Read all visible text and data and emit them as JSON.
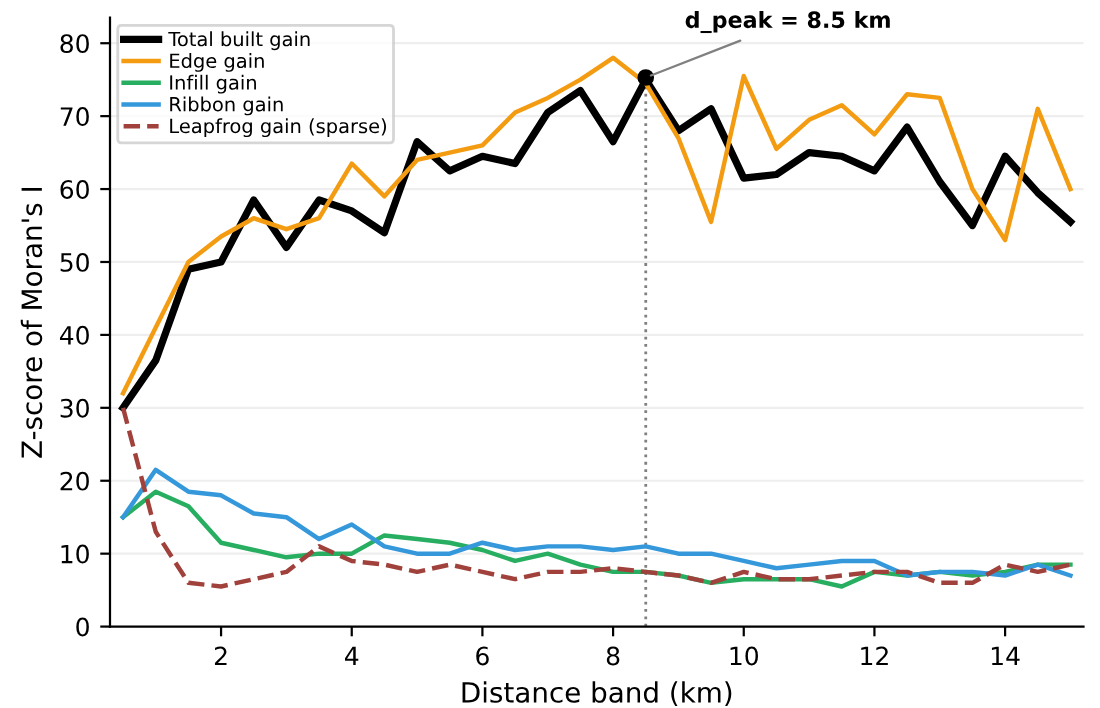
{
  "chart_data": {
    "type": "line",
    "xlabel": "Distance band (km)",
    "ylabel": "Z-score of Moran's I",
    "x": [
      0.5,
      1,
      1.5,
      2,
      2.5,
      3,
      3.5,
      4,
      4.5,
      5,
      5.5,
      6,
      6.5,
      7,
      7.5,
      8,
      8.5,
      9,
      9.5,
      10,
      10.5,
      11,
      11.5,
      12,
      12.5,
      13,
      13.5,
      14,
      14.5,
      15
    ],
    "series": [
      {
        "name": "Total built gain",
        "color": "#000000",
        "values": [
          30,
          36.5,
          49,
          50,
          58.5,
          52,
          58.5,
          57,
          54,
          66.5,
          62.5,
          64.5,
          63.5,
          70.5,
          73.5,
          66.5,
          75,
          68,
          71,
          61.5,
          62,
          65,
          64.5,
          62.5,
          68.5,
          61,
          55,
          64.5,
          59.5,
          55.5
        ]
      },
      {
        "name": "Edge gain",
        "color": "#f39c12",
        "values": [
          32,
          41,
          50,
          53.5,
          56,
          54.5,
          56,
          63.5,
          59,
          64,
          65,
          66,
          70.5,
          72.5,
          75,
          78,
          74.5,
          67,
          55.5,
          75.5,
          65.5,
          69.5,
          71.5,
          67.5,
          73,
          72.5,
          60,
          53,
          71,
          60
        ]
      },
      {
        "name": "Infill gain",
        "color": "#27ae60",
        "values": [
          15,
          18.5,
          16.5,
          11.5,
          10.5,
          9.5,
          10,
          10,
          12.5,
          12,
          11.5,
          10.5,
          9,
          10,
          8.5,
          7.5,
          7.5,
          7,
          6,
          6.5,
          6.5,
          6.5,
          5.5,
          7.5,
          7,
          7.5,
          7,
          7.5,
          8.5,
          8.5
        ]
      },
      {
        "name": "Ribbon gain",
        "color": "#3498db",
        "values": [
          15,
          21.5,
          18.5,
          18,
          15.5,
          15,
          12,
          14,
          11,
          10,
          10,
          11.5,
          10.5,
          11,
          11,
          10.5,
          11,
          10,
          10,
          9,
          8,
          8.5,
          9,
          9,
          7,
          7.5,
          7.5,
          7,
          8.5,
          7
        ]
      },
      {
        "name": "Leapfrog gain (sparse)",
        "color": "#a0413c",
        "line_style": "dashed",
        "values": [
          30,
          13,
          6,
          5.5,
          6.5,
          7.5,
          11,
          9,
          8.5,
          7.5,
          8.5,
          7.5,
          6.5,
          7.5,
          7.5,
          8,
          7.5,
          7,
          6,
          7.5,
          6.5,
          6.5,
          7,
          7.5,
          7.5,
          6,
          6,
          8.5,
          7.5,
          8.5
        ]
      }
    ],
    "annotations": [
      {
        "text": "d_peak = 8.5 km",
        "x": 8.5,
        "y": 75.3
      }
    ],
    "ref_lines": [
      {
        "axis": "x",
        "value": 8.5,
        "color": "#808080",
        "line_style": "dotted"
      }
    ],
    "xlim": [
      0.3,
      15.2
    ],
    "ylim": [
      0,
      83.5
    ],
    "xticks": [
      2,
      4,
      6,
      8,
      10,
      12,
      14
    ],
    "yticks": [
      0,
      10,
      20,
      30,
      40,
      50,
      60,
      70,
      80
    ],
    "grid": "y",
    "legend": "top left"
  }
}
